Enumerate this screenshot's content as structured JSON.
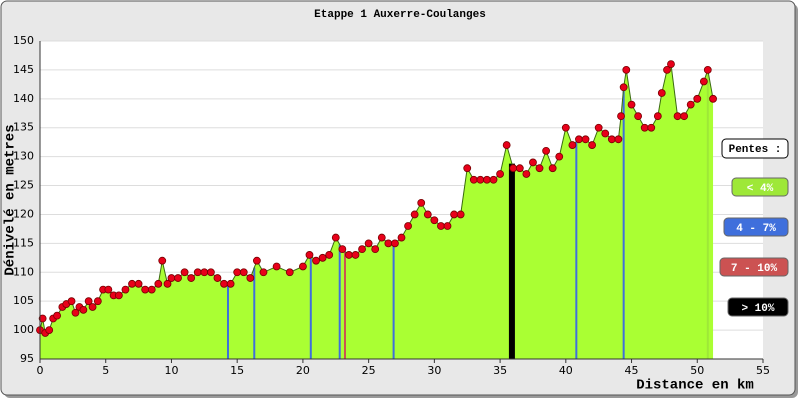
{
  "chart_data": {
    "type": "area",
    "title": "Etappe 1 Auxerre-Coulanges",
    "x_label": "Distance en km",
    "y_label": "Dénivelé en metres",
    "legend_title": "Pentes :",
    "xlim": [
      0,
      55
    ],
    "xticks": [
      0,
      5,
      10,
      15,
      20,
      25,
      30,
      35,
      40,
      45,
      50,
      55
    ],
    "ylim": [
      95,
      150
    ],
    "yticks": [
      95,
      100,
      105,
      110,
      115,
      120,
      125,
      130,
      135,
      140,
      145,
      150
    ],
    "grid": true,
    "series": [
      {
        "color": "#aaff33",
        "marker_color": "#e8001a",
        "x": [
          0,
          0.2,
          0.4,
          0.7,
          1,
          1.3,
          1.7,
          2,
          2.4,
          2.7,
          3,
          3.3,
          3.7,
          4,
          4.4,
          4.8,
          5.2,
          5.6,
          6,
          6.5,
          7,
          7.5,
          8,
          8.5,
          9,
          9.3,
          9.7,
          10,
          10.5,
          11,
          11.5,
          12,
          12.5,
          13,
          13.5,
          14,
          14.5,
          15,
          15.5,
          16,
          16.5,
          17,
          18,
          19,
          20,
          20.5,
          21,
          21.5,
          22,
          22.5,
          23,
          23.5,
          24,
          24.5,
          25,
          25.5,
          26,
          26.5,
          27,
          27.5,
          28,
          28.5,
          29,
          29.5,
          30,
          30.5,
          31,
          31.5,
          32,
          32.5,
          33,
          33.5,
          34,
          34.5,
          35,
          35.5,
          36,
          36.5,
          37,
          37.5,
          38,
          38.5,
          39,
          39.5,
          40,
          40.5,
          41,
          41.5,
          42,
          42.5,
          43,
          43.5,
          44,
          44.2,
          44.4,
          44.6,
          45,
          45.5,
          46,
          46.5,
          47,
          47.3,
          47.7,
          48,
          48.5,
          49,
          49.5,
          50,
          50.5,
          50.8,
          51.2
        ],
        "values": [
          100,
          102,
          99.5,
          100,
          102,
          102.5,
          104,
          104.5,
          105,
          103,
          104,
          103.5,
          105,
          104,
          105,
          107,
          107,
          106,
          106,
          107,
          108,
          108,
          107,
          107,
          108,
          112,
          108,
          109,
          109,
          110,
          109,
          110,
          110,
          110,
          109,
          108,
          108,
          110,
          110,
          109,
          112,
          110,
          111,
          110,
          111,
          113,
          112,
          112.5,
          113,
          116,
          114,
          113,
          113,
          114,
          115,
          114,
          116,
          115,
          115,
          116,
          118,
          120,
          122,
          120,
          119,
          118,
          118,
          120,
          120,
          128,
          126,
          126,
          126,
          126,
          127,
          132,
          128,
          128,
          127,
          129,
          128,
          131,
          128,
          130,
          135,
          132,
          133,
          133,
          132,
          135,
          134,
          133,
          133,
          137,
          142,
          145,
          139,
          137,
          135,
          135,
          137,
          141,
          145,
          146,
          137,
          137,
          139,
          140,
          143,
          145,
          140
        ]
      }
    ],
    "legend": [
      {
        "name": "< 4%",
        "color": "#9ee838",
        "x": [
          50.8
        ]
      },
      {
        "name": "4 - 7%",
        "color": "#3f6fdc",
        "x": [
          14.3,
          16.3,
          20.6,
          22.8,
          26.9,
          40.8,
          44.4
        ]
      },
      {
        "name": "7 - 10%",
        "color": "#cc5252",
        "x": [
          23.2
        ]
      },
      {
        "name": "> 10%",
        "color": "#000000",
        "x": [
          35.9
        ]
      }
    ]
  }
}
